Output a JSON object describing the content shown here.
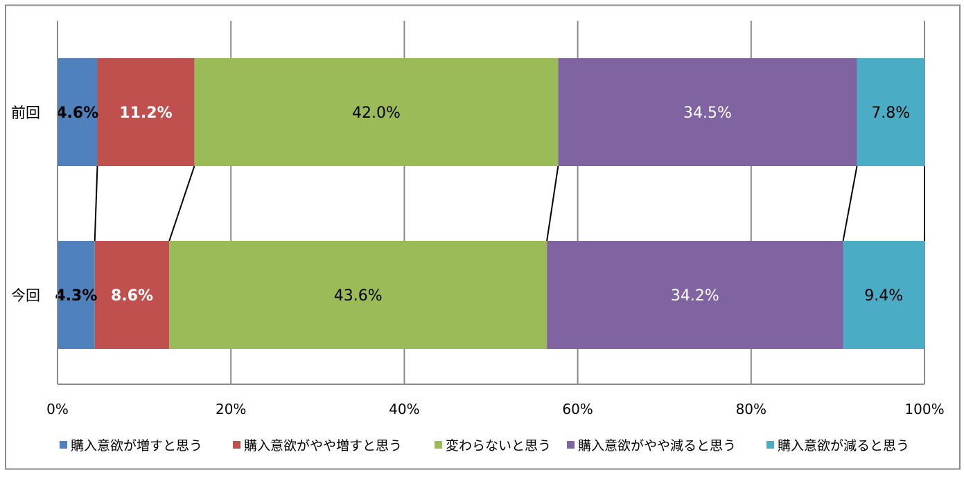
{
  "chart_data": {
    "type": "bar",
    "orientation": "horizontal",
    "stacked": "percent",
    "categories": [
      "前回",
      "今回"
    ],
    "series": [
      {
        "name": "購入意欲が増すと思う",
        "values": [
          4.6,
          4.3
        ],
        "color": "#4F81BD",
        "label_color": "#000000",
        "label_bold": true
      },
      {
        "name": "購入意欲がやや増すと思う",
        "values": [
          11.2,
          8.6
        ],
        "color": "#C0504D",
        "label_color": "#FFFFFF",
        "label_bold": true
      },
      {
        "name": "変わらないと思う",
        "values": [
          42.0,
          43.6
        ],
        "color": "#9BBB59",
        "label_color": "#000000",
        "label_bold": false
      },
      {
        "name": "購入意欲がやや減ると思う",
        "values": [
          34.5,
          34.2
        ],
        "color": "#8064A2",
        "label_color": "#FFFFFF",
        "label_bold": false
      },
      {
        "name": "購入意欲が減ると思う",
        "values": [
          7.8,
          9.4
        ],
        "color": "#4BACC6",
        "label_color": "#000000",
        "label_bold": false
      }
    ],
    "data_labels": [
      [
        "4.6%",
        "11.2%",
        "42.0%",
        "34.5%",
        "7.8%"
      ],
      [
        "4.3%",
        "8.6%",
        "43.6%",
        "34.2%",
        "9.4%"
      ]
    ],
    "x_ticks": [
      "0%",
      "20%",
      "40%",
      "60%",
      "80%",
      "100%"
    ],
    "x_tick_values": [
      0,
      20,
      40,
      60,
      80,
      100
    ],
    "xlim": [
      0,
      100
    ],
    "grid": true,
    "series_lines": true,
    "legend_position": "bottom",
    "title": "",
    "xlabel": "",
    "ylabel": ""
  }
}
